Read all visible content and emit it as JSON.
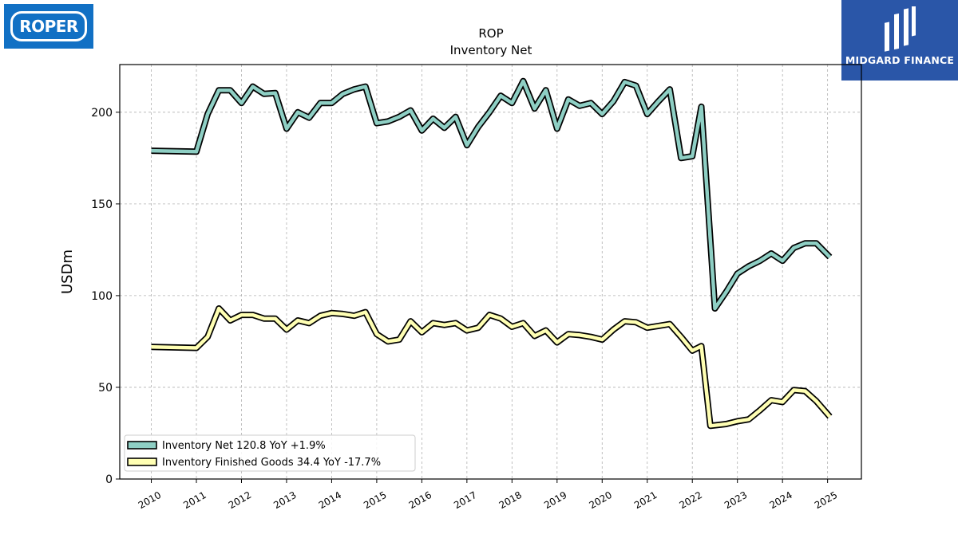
{
  "brand": {
    "left_logo_text": "ROPER",
    "right_logo_text": "MIDGARD FINANCE",
    "left_logo_color": "#1170c4",
    "right_logo_color": "#2a56a8"
  },
  "chart_data": {
    "type": "line",
    "title": "ROP",
    "subtitle": "Inventory Net",
    "xlabel": "",
    "ylabel": "USDm",
    "xlim": [
      2009.3,
      2025.75
    ],
    "ylim": [
      0,
      226
    ],
    "x_ticks": [
      "2010",
      "2011",
      "2012",
      "2013",
      "2014",
      "2015",
      "2016",
      "2017",
      "2018",
      "2019",
      "2020",
      "2021",
      "2022",
      "2023",
      "2024",
      "2025"
    ],
    "y_ticks": [
      "0",
      "50",
      "100",
      "150",
      "200"
    ],
    "grid": true,
    "legend_position": "lower-left",
    "series": [
      {
        "name": "Inventory Net  120.8 YoY +1.9%",
        "color": "#8ecfc4",
        "points": [
          [
            2010.0,
            179
          ],
          [
            2011.0,
            178.5
          ],
          [
            2011.25,
            199
          ],
          [
            2011.5,
            212
          ],
          [
            2011.75,
            212
          ],
          [
            2012.0,
            205
          ],
          [
            2012.25,
            214
          ],
          [
            2012.5,
            210
          ],
          [
            2012.75,
            210.5
          ],
          [
            2013.0,
            191
          ],
          [
            2013.25,
            200
          ],
          [
            2013.5,
            197
          ],
          [
            2013.75,
            205
          ],
          [
            2014.0,
            205
          ],
          [
            2014.25,
            210
          ],
          [
            2014.5,
            212.5
          ],
          [
            2014.75,
            214
          ],
          [
            2015.0,
            194
          ],
          [
            2015.25,
            195
          ],
          [
            2015.5,
            197.5
          ],
          [
            2015.75,
            201
          ],
          [
            2016.0,
            190
          ],
          [
            2016.25,
            196.5
          ],
          [
            2016.5,
            191.5
          ],
          [
            2016.75,
            197.5
          ],
          [
            2017.0,
            182
          ],
          [
            2017.25,
            192
          ],
          [
            2017.5,
            200
          ],
          [
            2017.75,
            209
          ],
          [
            2018.0,
            205
          ],
          [
            2018.25,
            217
          ],
          [
            2018.5,
            202
          ],
          [
            2018.75,
            212
          ],
          [
            2019.0,
            191
          ],
          [
            2019.25,
            207
          ],
          [
            2019.5,
            203.5
          ],
          [
            2019.75,
            205
          ],
          [
            2020.0,
            199
          ],
          [
            2020.25,
            206
          ],
          [
            2020.5,
            216.5
          ],
          [
            2020.75,
            214.5
          ],
          [
            2021.0,
            199
          ],
          [
            2021.25,
            206
          ],
          [
            2021.5,
            212.5
          ],
          [
            2021.75,
            175
          ],
          [
            2022.0,
            176
          ],
          [
            2022.2,
            203
          ],
          [
            2022.5,
            93
          ],
          [
            2022.75,
            102
          ],
          [
            2023.0,
            112
          ],
          [
            2023.25,
            116
          ],
          [
            2023.5,
            119
          ],
          [
            2023.75,
            123
          ],
          [
            2024.0,
            119
          ],
          [
            2024.25,
            126
          ],
          [
            2024.5,
            128.5
          ],
          [
            2024.75,
            128.5
          ],
          [
            2025.05,
            121
          ]
        ]
      },
      {
        "name": "Inventory Finished Goods  34.4 YoY -17.7%",
        "color": "#ffffb3",
        "points": [
          [
            2010.0,
            72
          ],
          [
            2011.0,
            71.5
          ],
          [
            2011.25,
            77.5
          ],
          [
            2011.5,
            93
          ],
          [
            2011.75,
            86.5
          ],
          [
            2012.0,
            89.5
          ],
          [
            2012.25,
            89.5
          ],
          [
            2012.5,
            87.5
          ],
          [
            2012.75,
            87.5
          ],
          [
            2013.0,
            81.5
          ],
          [
            2013.25,
            86.5
          ],
          [
            2013.5,
            85
          ],
          [
            2013.75,
            89
          ],
          [
            2014.0,
            90.5
          ],
          [
            2014.25,
            90
          ],
          [
            2014.5,
            89
          ],
          [
            2014.75,
            91
          ],
          [
            2015.0,
            79
          ],
          [
            2015.25,
            75
          ],
          [
            2015.5,
            76
          ],
          [
            2015.75,
            86
          ],
          [
            2016.0,
            80
          ],
          [
            2016.25,
            85
          ],
          [
            2016.5,
            84
          ],
          [
            2016.75,
            85
          ],
          [
            2017.0,
            81
          ],
          [
            2017.25,
            82.5
          ],
          [
            2017.5,
            89.5
          ],
          [
            2017.75,
            87.5
          ],
          [
            2018.0,
            83
          ],
          [
            2018.25,
            85
          ],
          [
            2018.5,
            78
          ],
          [
            2018.75,
            81
          ],
          [
            2019.0,
            74.5
          ],
          [
            2019.25,
            79
          ],
          [
            2019.5,
            78.5
          ],
          [
            2019.75,
            77.5
          ],
          [
            2020.0,
            76
          ],
          [
            2020.25,
            81.5
          ],
          [
            2020.5,
            86
          ],
          [
            2020.75,
            85.5
          ],
          [
            2021.0,
            82.5
          ],
          [
            2021.25,
            83.5
          ],
          [
            2021.5,
            84.5
          ],
          [
            2021.75,
            77.5
          ],
          [
            2022.0,
            70
          ],
          [
            2022.2,
            72.5
          ],
          [
            2022.4,
            29
          ],
          [
            2022.75,
            30
          ],
          [
            2023.0,
            31.5
          ],
          [
            2023.25,
            32.5
          ],
          [
            2023.5,
            37.5
          ],
          [
            2023.75,
            43
          ],
          [
            2024.0,
            42
          ],
          [
            2024.25,
            48.5
          ],
          [
            2024.5,
            48
          ],
          [
            2024.75,
            42.5
          ],
          [
            2025.05,
            34
          ]
        ]
      }
    ]
  }
}
